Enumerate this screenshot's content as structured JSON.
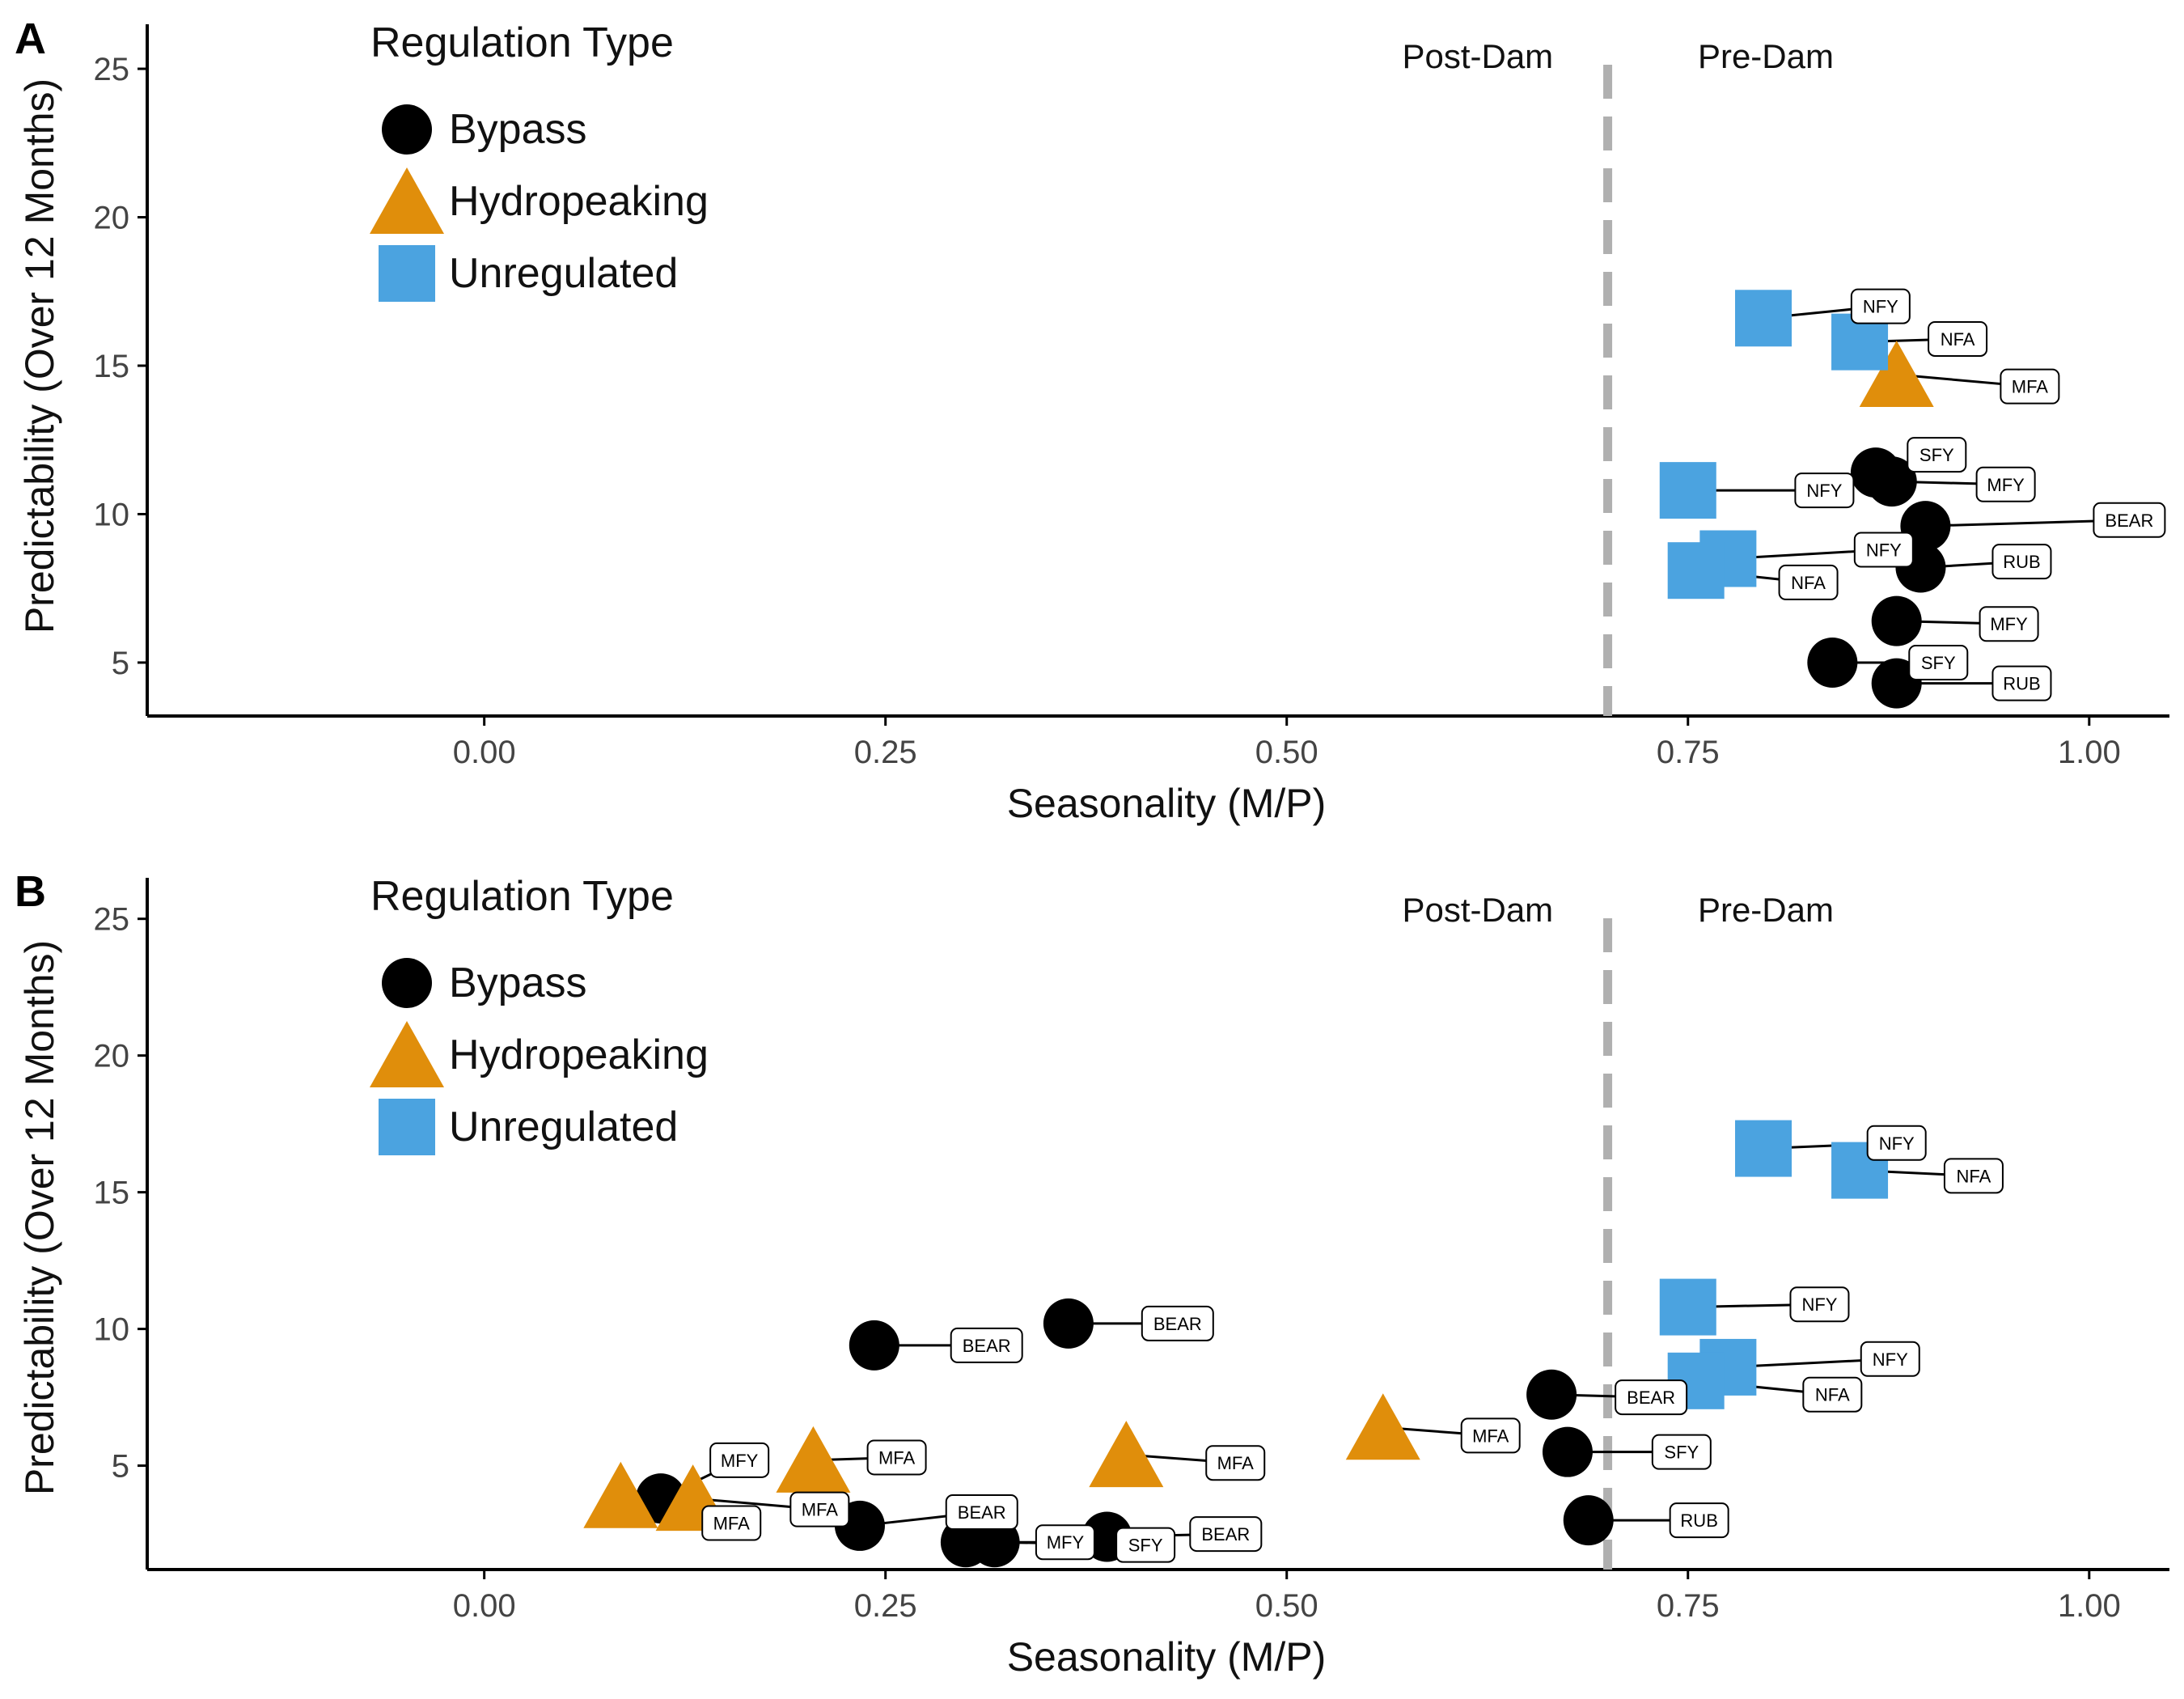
{
  "colors": {
    "bypass": "#000000",
    "hydropeaking": "#E08E0B",
    "unregulated": "#4BA3E0",
    "threshold": "#B0B0B0",
    "axis": "#000000"
  },
  "icons": {
    "Bypass": "circle",
    "Hydropeaking": "triangle",
    "Unregulated": "square"
  },
  "chart_data": [
    {
      "type": "scatter",
      "panel": "A",
      "xlabel": "Seasonality (M/P)",
      "ylabel": "Predictability (Over 12 Months)",
      "xlim": [
        -0.21,
        1.05
      ],
      "ylim": [
        3.2,
        26.5
      ],
      "xticks": [
        "0.00",
        "0.25",
        "0.50",
        "0.75",
        "1.00"
      ],
      "yticks": [
        "5",
        "10",
        "15",
        "20",
        "25"
      ],
      "threshold_x": 0.7,
      "annotations": [
        "Post-Dam",
        "Pre-Dam"
      ],
      "legend": {
        "title": "Regulation Type",
        "position": "top-left",
        "entries": [
          "Bypass",
          "Hydropeaking",
          "Unregulated"
        ]
      },
      "series": [
        {
          "name": "Bypass",
          "points": [
            {
              "x": 0.867,
              "y": 11.4,
              "label": "SFY",
              "lx": 0.905,
              "ly": 12.0
            },
            {
              "x": 0.877,
              "y": 11.1,
              "label": "MFY",
              "lx": 0.948,
              "ly": 11.0
            },
            {
              "x": 0.898,
              "y": 9.6,
              "label": "BEAR",
              "lx": 1.025,
              "ly": 9.8
            },
            {
              "x": 0.895,
              "y": 8.2,
              "label": "RUB",
              "lx": 0.958,
              "ly": 8.4
            },
            {
              "x": 0.88,
              "y": 6.4,
              "label": "MFY",
              "lx": 0.95,
              "ly": 6.3
            },
            {
              "x": 0.84,
              "y": 5.0,
              "label": "SFY",
              "lx": 0.906,
              "ly": 5.0
            },
            {
              "x": 0.88,
              "y": 4.3,
              "label": "RUB",
              "lx": 0.958,
              "ly": 4.3
            }
          ]
        },
        {
          "name": "Hydropeaking",
          "points": [
            {
              "x": 0.88,
              "y": 14.7,
              "label": "MFA",
              "lx": 0.963,
              "ly": 14.3
            }
          ]
        },
        {
          "name": "Unregulated",
          "points": [
            {
              "x": 0.797,
              "y": 16.6,
              "label": "NFY",
              "lx": 0.87,
              "ly": 17.0
            },
            {
              "x": 0.857,
              "y": 15.8,
              "label": "NFA",
              "lx": 0.918,
              "ly": 15.9
            },
            {
              "x": 0.75,
              "y": 10.8,
              "label": "NFY",
              "lx": 0.835,
              "ly": 10.8
            },
            {
              "x": 0.775,
              "y": 8.5,
              "label": "NFY",
              "lx": 0.872,
              "ly": 8.8
            },
            {
              "x": 0.755,
              "y": 8.1,
              "label": "NFA",
              "lx": 0.825,
              "ly": 7.7
            }
          ]
        }
      ]
    },
    {
      "type": "scatter",
      "panel": "B",
      "xlabel": "Seasonality (M/P)",
      "ylabel": "Predictability (Over 12 Months)",
      "xlim": [
        -0.21,
        1.05
      ],
      "ylim": [
        1.2,
        26.5
      ],
      "xticks": [
        "0.00",
        "0.25",
        "0.50",
        "0.75",
        "1.00"
      ],
      "yticks": [
        "5",
        "10",
        "15",
        "20",
        "25"
      ],
      "threshold_x": 0.7,
      "annotations": [
        "Post-Dam",
        "Pre-Dam"
      ],
      "legend": {
        "title": "Regulation Type",
        "position": "top-left",
        "entries": [
          "Bypass",
          "Hydropeaking",
          "Unregulated"
        ]
      },
      "series": [
        {
          "name": "Bypass",
          "points": [
            {
              "x": 0.243,
              "y": 9.4,
              "label": "BEAR",
              "lx": 0.313,
              "ly": 9.4
            },
            {
              "x": 0.364,
              "y": 10.2,
              "label": "BEAR",
              "lx": 0.432,
              "ly": 10.2
            },
            {
              "x": 0.11,
              "y": 3.8,
              "label": "MFY",
              "lx": 0.159,
              "ly": 5.2
            },
            {
              "x": 0.234,
              "y": 2.8,
              "label": "BEAR",
              "lx": 0.31,
              "ly": 3.3
            },
            {
              "x": 0.3,
              "y": 2.2,
              "label": "MFY",
              "lx": 0.362,
              "ly": 2.2
            },
            {
              "x": 0.318,
              "y": 2.2,
              "label": "SFY",
              "lx": 0.412,
              "ly": 2.1
            },
            {
              "x": 0.388,
              "y": 2.4,
              "label": "BEAR",
              "lx": 0.462,
              "ly": 2.5
            },
            {
              "x": 0.665,
              "y": 7.6,
              "label": "BEAR",
              "lx": 0.727,
              "ly": 7.5
            },
            {
              "x": 0.675,
              "y": 5.5,
              "label": "SFY",
              "lx": 0.746,
              "ly": 5.5
            },
            {
              "x": 0.688,
              "y": 3.0,
              "label": "RUB",
              "lx": 0.757,
              "ly": 3.0
            }
          ]
        },
        {
          "name": "Hydropeaking",
          "points": [
            {
              "x": 0.085,
              "y": 3.9,
              "label": "MFA",
              "lx": 0.154,
              "ly": 2.9
            },
            {
              "x": 0.13,
              "y": 3.8,
              "label": "MFA",
              "lx": 0.209,
              "ly": 3.4
            },
            {
              "x": 0.205,
              "y": 5.2,
              "label": "MFA",
              "lx": 0.257,
              "ly": 5.3
            },
            {
              "x": 0.4,
              "y": 5.4,
              "label": "MFA",
              "lx": 0.468,
              "ly": 5.1
            },
            {
              "x": 0.56,
              "y": 6.4,
              "label": "MFA",
              "lx": 0.627,
              "ly": 6.1
            }
          ]
        },
        {
          "name": "Unregulated",
          "points": [
            {
              "x": 0.797,
              "y": 16.6,
              "label": "NFY",
              "lx": 0.88,
              "ly": 16.8
            },
            {
              "x": 0.857,
              "y": 15.8,
              "label": "NFA",
              "lx": 0.928,
              "ly": 15.6
            },
            {
              "x": 0.75,
              "y": 10.8,
              "label": "NFY",
              "lx": 0.832,
              "ly": 10.9
            },
            {
              "x": 0.775,
              "y": 8.6,
              "label": "NFY",
              "lx": 0.876,
              "ly": 8.9
            },
            {
              "x": 0.755,
              "y": 8.1,
              "label": "NFA",
              "lx": 0.84,
              "ly": 7.6
            }
          ]
        }
      ]
    }
  ]
}
